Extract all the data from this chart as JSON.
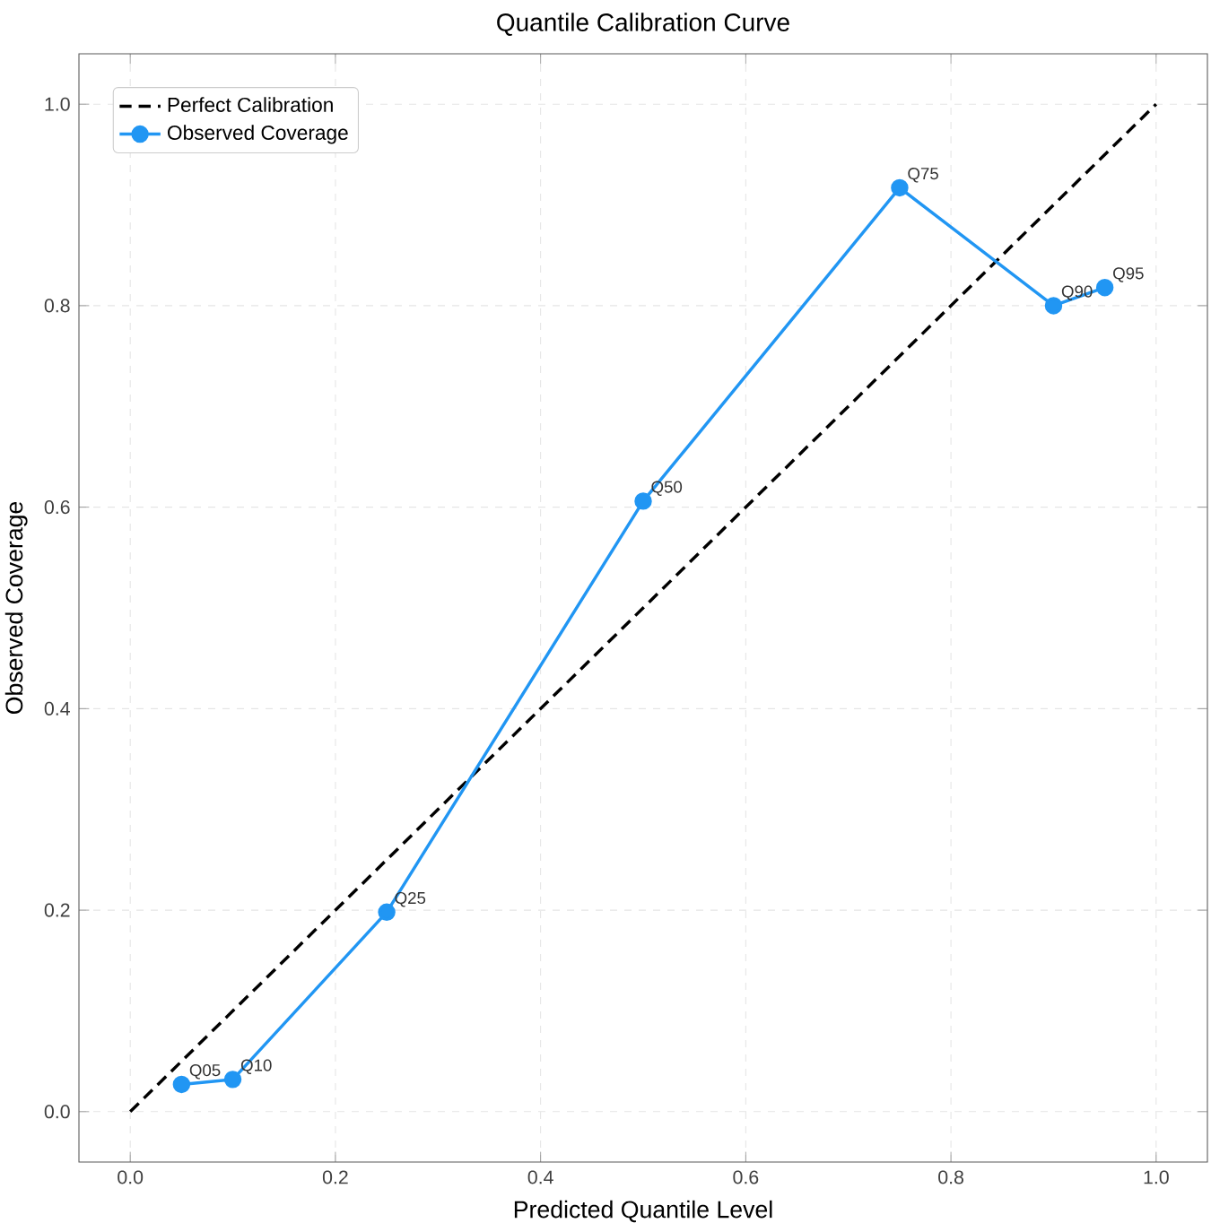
{
  "chart_data": {
    "type": "line",
    "title": "Quantile Calibration Curve",
    "xlabel": "Predicted Quantile Level",
    "ylabel": "Observed Coverage",
    "xlim": [
      -0.05,
      1.05
    ],
    "ylim": [
      -0.05,
      1.05
    ],
    "xticks": [
      {
        "value": 0,
        "label": "0.0"
      },
      {
        "value": 0.2,
        "label": "0.2"
      },
      {
        "value": 0.4,
        "label": "0.4"
      },
      {
        "value": 0.6,
        "label": "0.6"
      },
      {
        "value": 0.8,
        "label": "0.8"
      },
      {
        "value": 1,
        "label": "1.0"
      }
    ],
    "yticks": [
      {
        "value": 0,
        "label": "0.0"
      },
      {
        "value": 0.2,
        "label": "0.2"
      },
      {
        "value": 0.4,
        "label": "0.4"
      },
      {
        "value": 0.6,
        "label": "0.6"
      },
      {
        "value": 0.8,
        "label": "0.8"
      },
      {
        "value": 1,
        "label": "1.0"
      }
    ],
    "grid": true,
    "legend": "top left",
    "series": [
      {
        "name": "Perfect Calibration",
        "color": "#000000",
        "x": [
          0,
          1
        ],
        "values": [
          0,
          1
        ],
        "line_style": "dashed",
        "marker": "none"
      },
      {
        "name": "Observed Coverage",
        "color": "#2196f3",
        "x": [
          0.05,
          0.1,
          0.25,
          0.5,
          0.75,
          0.9,
          0.95
        ],
        "values": [
          0.027,
          0.032,
          0.198,
          0.606,
          0.917,
          0.8,
          0.818
        ],
        "line_style": "solid",
        "marker": "circle"
      }
    ],
    "annotations": [
      {
        "text": "Q05",
        "x": 0.05,
        "y": 0.027
      },
      {
        "text": "Q10",
        "x": 0.1,
        "y": 0.032
      },
      {
        "text": "Q25",
        "x": 0.25,
        "y": 0.198
      },
      {
        "text": "Q50",
        "x": 0.5,
        "y": 0.606
      },
      {
        "text": "Q75",
        "x": 0.75,
        "y": 0.917
      },
      {
        "text": "Q90",
        "x": 0.9,
        "y": 0.8
      },
      {
        "text": "Q95",
        "x": 0.95,
        "y": 0.818
      }
    ]
  }
}
